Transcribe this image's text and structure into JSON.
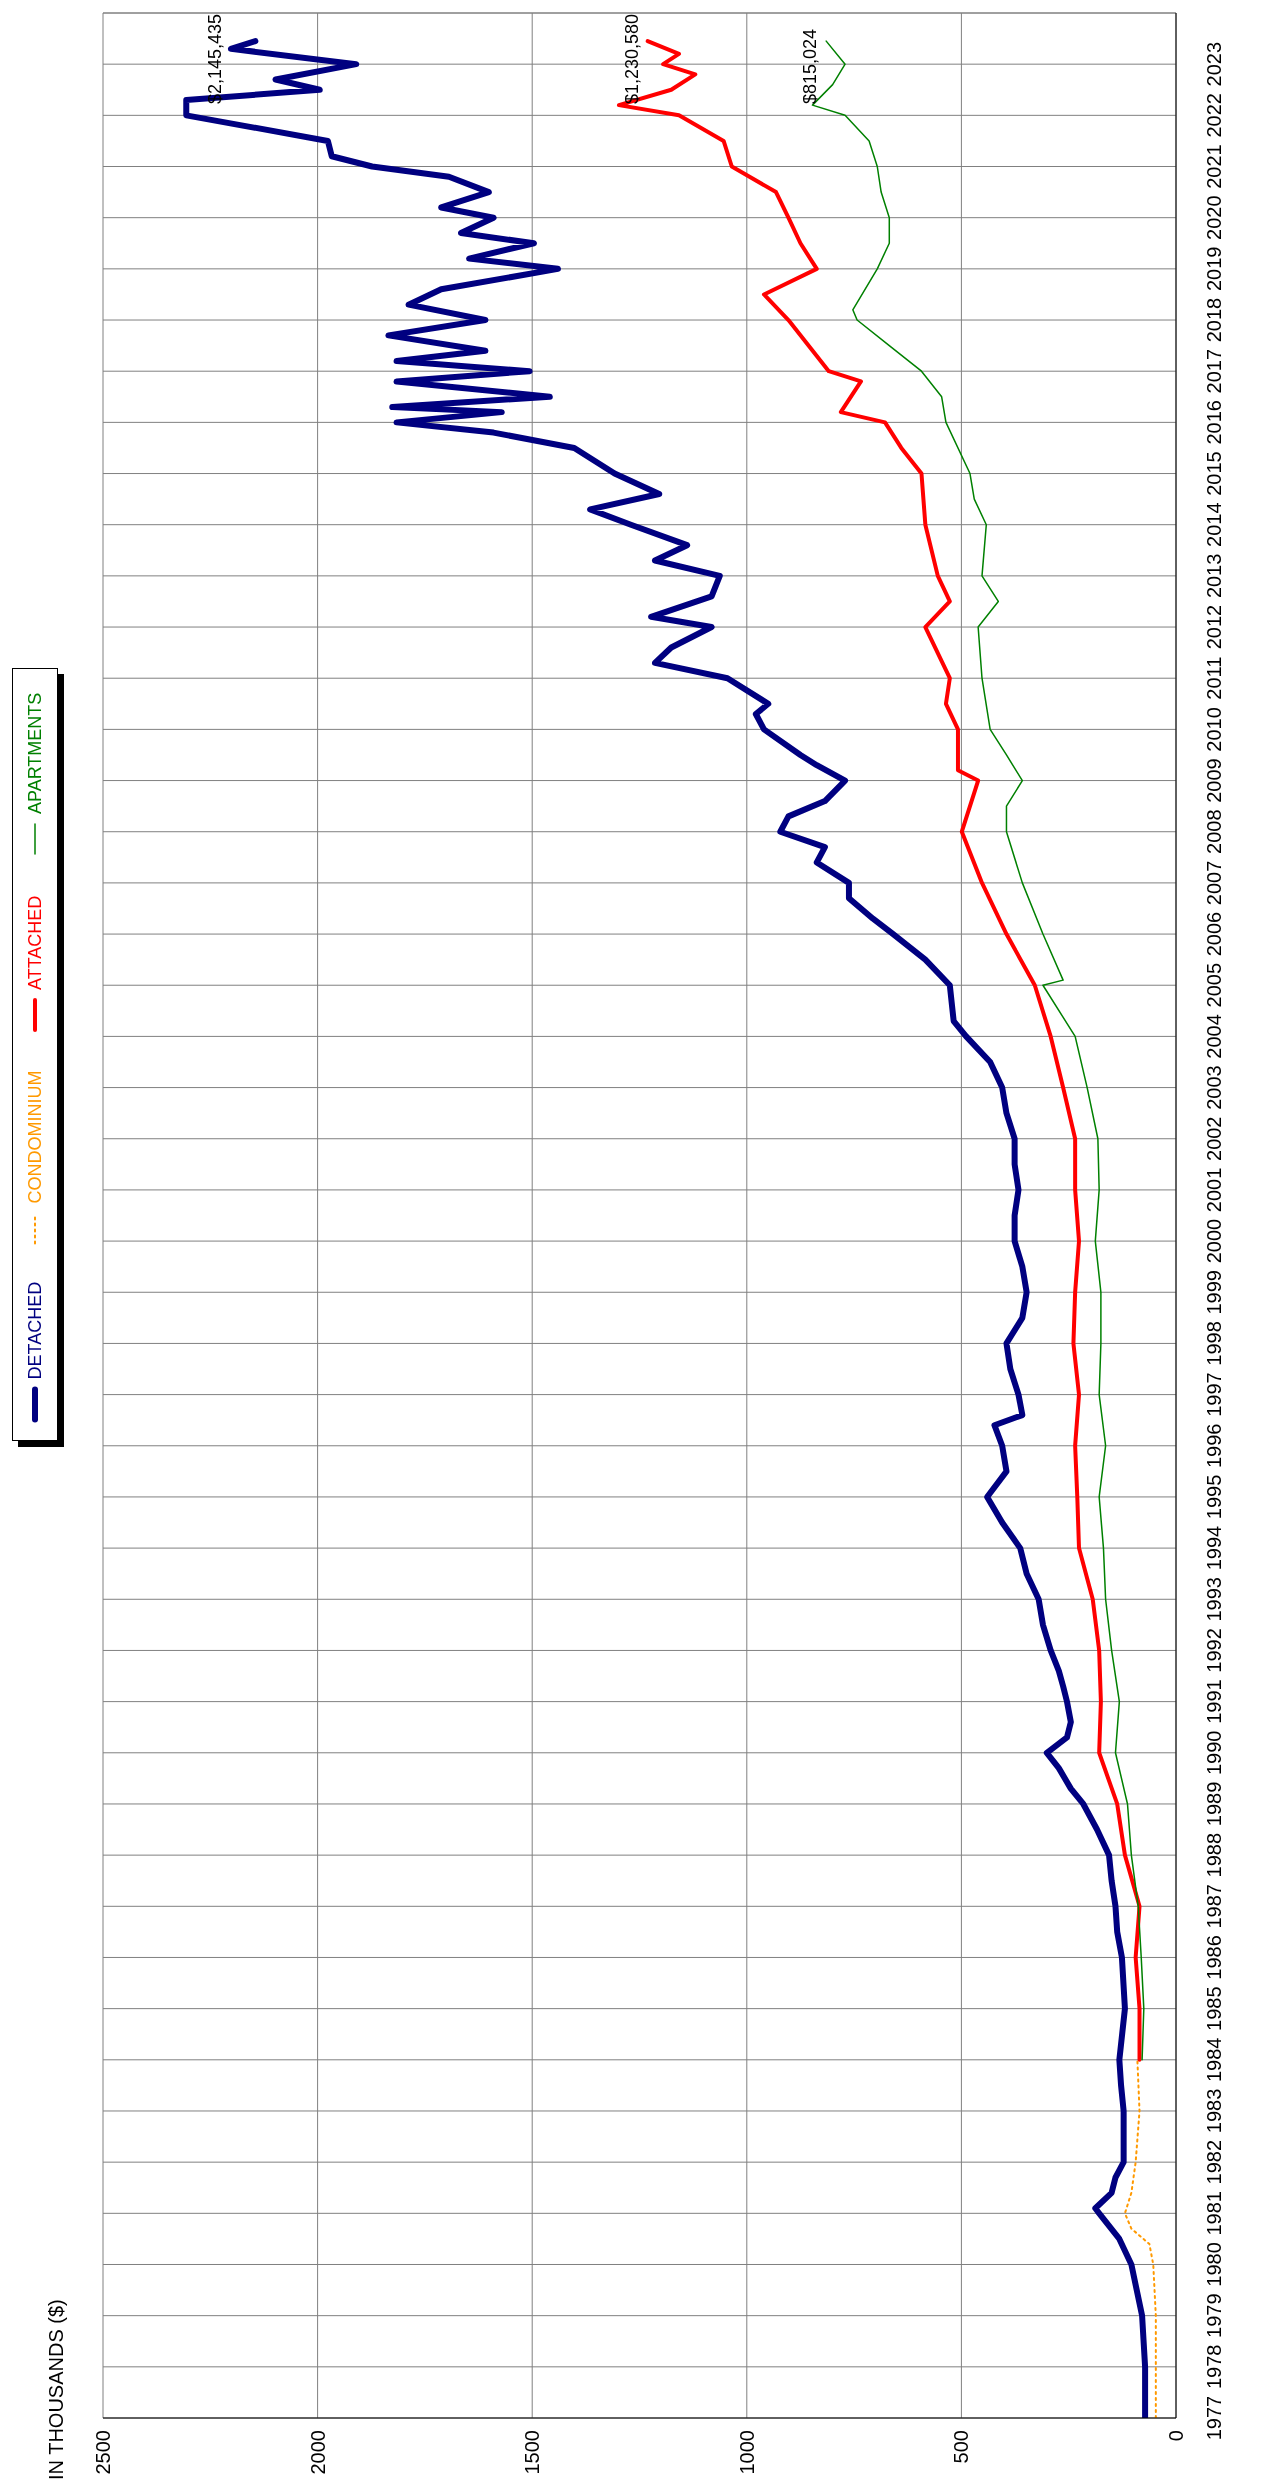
{
  "chart_data": {
    "type": "line",
    "orientation": "horizontal",
    "ylabel": "IN THOUSANDS ($)",
    "ylim": [
      1977,
      2024
    ],
    "yticks": [
      1977,
      1978,
      1979,
      1980,
      1981,
      1982,
      1983,
      1984,
      1985,
      1986,
      1987,
      1988,
      1989,
      1990,
      1991,
      1992,
      1993,
      1994,
      1995,
      1996,
      1997,
      1998,
      1999,
      2000,
      2001,
      2002,
      2003,
      2004,
      2005,
      2006,
      2007,
      2008,
      2009,
      2010,
      2011,
      2012,
      2013,
      2014,
      2015,
      2016,
      2017,
      2018,
      2019,
      2020,
      2021,
      2022,
      2023
    ],
    "xlim": [
      2500,
      0
    ],
    "xticks": [
      2500,
      2000,
      1500,
      1000,
      500,
      0
    ],
    "grid": true,
    "legend": "left",
    "series": [
      {
        "name": "DETACHED",
        "color": "#000080",
        "x": [
          1977,
          1978,
          1979,
          1980,
          1980.5,
          1981,
          1981.1,
          1981.4,
          1981.7,
          1982,
          1983,
          1983.5,
          1984,
          1985,
          1986,
          1986.5,
          1987,
          1987.5,
          1988,
          1988.5,
          1989,
          1989.3,
          1989.7,
          1990,
          1990.3,
          1990.6,
          1991,
          1991.3,
          1991.6,
          1992,
          1992.5,
          1993,
          1993.5,
          1994,
          1994.5,
          1995,
          1995.5,
          1996,
          1996.4,
          1996.6,
          1997,
          1997.5,
          1998,
          1998.5,
          1999,
          1999.5,
          2000,
          2000.5,
          2001,
          2001.5,
          2002,
          2002.5,
          2003,
          2003.5,
          2004,
          2004.3,
          2005,
          2005.5,
          2006,
          2006.3,
          2006.7,
          2007,
          2007.4,
          2007.7,
          2008,
          2008.3,
          2008.6,
          2009,
          2009.3,
          2009.5,
          2010,
          2010.3,
          2010.5,
          2011,
          2011.3,
          2011.6,
          2012,
          2012.2,
          2012.6,
          2013,
          2013.3,
          2013.6,
          2014,
          2014.3,
          2014.6,
          2015,
          2015.5,
          2015.8,
          2016,
          2016.2,
          2016.3,
          2016.5,
          2016.8,
          2017,
          2017.2,
          2017.4,
          2017.7,
          2018,
          2018.3,
          2018.6,
          2019,
          2019.2,
          2019.5,
          2019.7,
          2020,
          2020.2,
          2020.5,
          2020.8,
          2021,
          2021.2,
          2021.5,
          2022,
          2022.3,
          2022.5,
          2022.7,
          2023,
          2023.3,
          2023.45
        ],
        "values": [
          72,
          72,
          79,
          104,
          132,
          179,
          188,
          150,
          141,
          122,
          122,
          128,
          132,
          119,
          126,
          137,
          141,
          150,
          156,
          184,
          216,
          245,
          273,
          301,
          254,
          245,
          254,
          263,
          273,
          292,
          310,
          320,
          348,
          363,
          405,
          440,
          395,
          405,
          423,
          358,
          367,
          386,
          395,
          358,
          348,
          358,
          376,
          376,
          367,
          376,
          376,
          395,
          405,
          433,
          489,
          518,
          527,
          584,
          659,
          706,
          762,
          762,
          837,
          818,
          922,
          903,
          818,
          771,
          837,
          875,
          960,
          979,
          950,
          1045,
          1214,
          1176,
          1082,
          1223,
          1082,
          1063,
          1214,
          1139,
          1270,
          1365,
          1204,
          1308,
          1402,
          1590,
          1816,
          1571,
          1826,
          1459,
          1816,
          1506,
          1816,
          1609,
          1835,
          1609,
          1788,
          1712,
          1440,
          1647,
          1496,
          1666,
          1590,
          1712,
          1601,
          1694,
          1873,
          1967,
          1976,
          2306,
          2306,
          1995,
          2098,
          1910,
          2202,
          2145
        ]
      },
      {
        "name": "CONDOMINIUM",
        "color": "#ff9900",
        "line_style": "dotted",
        "x": [
          1977,
          1978,
          1979,
          1980,
          1980.4,
          1980.7,
          1981,
          1981.4,
          1982,
          1983,
          1984
        ],
        "values": [
          47,
          47,
          47,
          53,
          62,
          104,
          119,
          104,
          94,
          85,
          90
        ]
      },
      {
        "name": "ATTACHED",
        "color": "#ff0000",
        "x": [
          1984,
          1985,
          1986,
          1987,
          1988,
          1989,
          1990,
          1991,
          1992,
          1993,
          1994,
          1995,
          1996,
          1997,
          1998,
          1999,
          2000,
          2001,
          2002,
          2003,
          2004,
          2005,
          2006,
          2007,
          2008,
          2009,
          2009.2,
          2010,
          2010.5,
          2011,
          2012,
          2012.5,
          2013,
          2014,
          2015,
          2015.5,
          2016,
          2016.2,
          2016.8,
          2017,
          2018,
          2018.5,
          2019,
          2019.5,
          2020,
          2020.5,
          2021,
          2021.5,
          2022,
          2022.2,
          2022.5,
          2022.8,
          2023,
          2023.2,
          2023.45
        ],
        "values": [
          85,
          85,
          94,
          85,
          119,
          137,
          179,
          175,
          179,
          194,
          226,
          230,
          235,
          226,
          239,
          235,
          226,
          235,
          235,
          263,
          292,
          329,
          395,
          452,
          499,
          461,
          508,
          508,
          536,
          527,
          584,
          527,
          555,
          584,
          593,
          640,
          678,
          781,
          734,
          809,
          903,
          960,
          837,
          875,
          903,
          932,
          1035,
          1054,
          1158,
          1298,
          1176,
          1120,
          1195,
          1158,
          1231
        ]
      },
      {
        "name": "APARTMENTS",
        "color": "#008000",
        "x": [
          1984,
          1985,
          1986,
          1987,
          1988,
          1989,
          1990,
          1991,
          1992,
          1993,
          1994,
          1995,
          1996,
          1997,
          1998,
          1999,
          2000,
          2001,
          2002,
          2003,
          2004,
          2005,
          2005.1,
          2006,
          2007,
          2008,
          2008.5,
          2009,
          2009.5,
          2010,
          2011,
          2012,
          2012.5,
          2013,
          2014,
          2014.5,
          2015,
          2016,
          2016.5,
          2017,
          2017.5,
          2018,
          2018.2,
          2019,
          2019.5,
          2020,
          2020.5,
          2021,
          2021.5,
          2022,
          2022.2,
          2022.6,
          2023,
          2023.45
        ],
        "values": [
          79,
          75,
          81,
          88,
          104,
          113,
          141,
          132,
          150,
          164,
          169,
          179,
          164,
          179,
          175,
          175,
          188,
          179,
          182,
          207,
          235,
          310,
          263,
          310,
          358,
          395,
          395,
          358,
          395,
          433,
          452,
          461,
          414,
          452,
          442,
          470,
          480,
          536,
          546,
          593,
          668,
          743,
          753,
          696,
          668,
          668,
          687,
          696,
          715,
          771,
          847,
          800,
          771,
          815
        ]
      }
    ],
    "annotations": [
      {
        "text": "$2,145,435",
        "x": 2145,
        "y": 2023.45
      },
      {
        "text": "$1,230,580",
        "x": 1231,
        "y": 2023.45
      },
      {
        "text": "$815,024",
        "x": 815,
        "y": 2023.45
      }
    ]
  }
}
